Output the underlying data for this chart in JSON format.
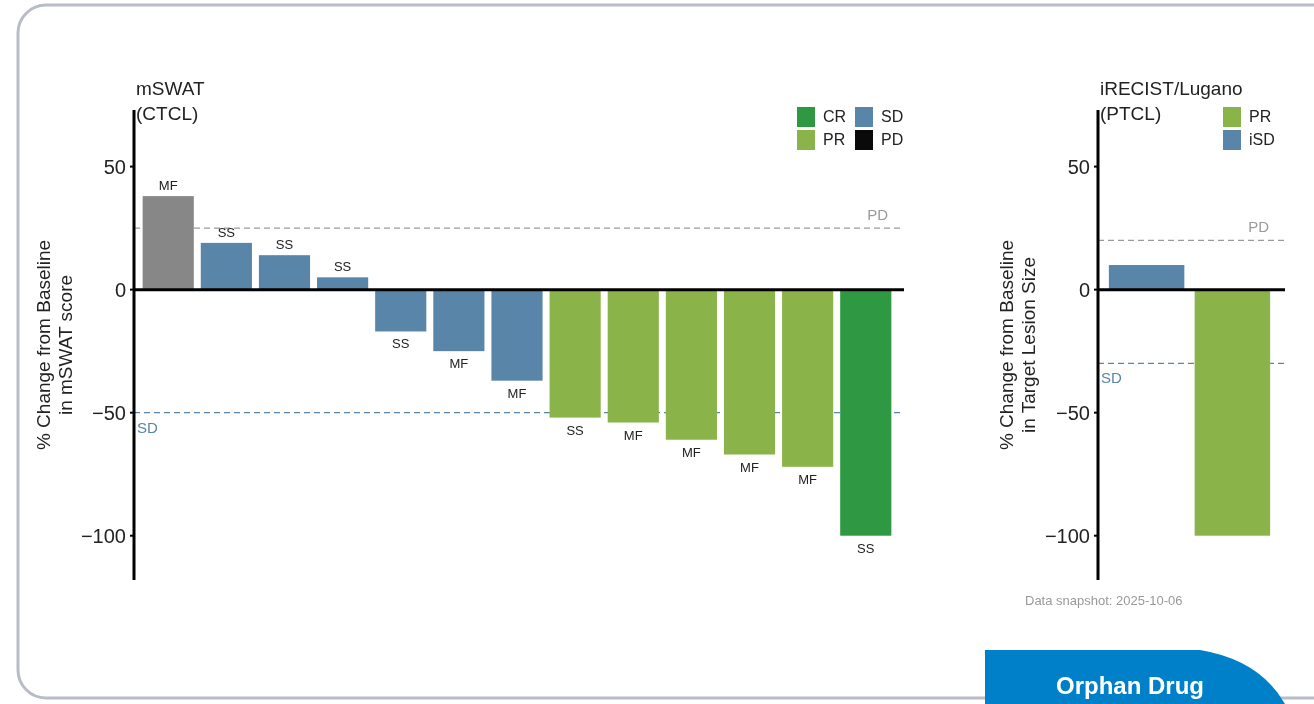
{
  "chart_data": [
    {
      "type": "bar",
      "title": "mSWAT\n(CTCL)",
      "ylabel": "% Change from Baseline\nin mSWAT score",
      "categories": [
        null,
        null,
        null,
        null,
        null,
        null,
        null,
        null,
        null,
        null,
        null,
        null,
        null
      ],
      "series": [
        {
          "name": "CR",
          "color": "#2e9843",
          "values": [
            null,
            null,
            null,
            null,
            null,
            null,
            null,
            null,
            null,
            null,
            null,
            null,
            -100
          ],
          "value_labels": [
            null,
            null,
            null,
            null,
            null,
            null,
            null,
            null,
            null,
            null,
            null,
            null,
            "SS"
          ]
        },
        {
          "name": "PR",
          "color": "#8ab44a",
          "values": [
            null,
            null,
            null,
            null,
            null,
            null,
            null,
            -52,
            -54,
            -61,
            -67,
            -72,
            null
          ],
          "value_labels": [
            null,
            null,
            null,
            null,
            null,
            null,
            null,
            "SS",
            "MF",
            "MF",
            "MF",
            "MF",
            null
          ]
        },
        {
          "name": "SD",
          "color": "#5885a8",
          "values": [
            null,
            19,
            14,
            5,
            -17,
            -25,
            -37,
            null,
            null,
            null,
            null,
            null,
            null
          ],
          "value_labels": [
            null,
            "SS",
            "SS",
            "SS",
            "SS",
            "MF",
            "MF",
            null,
            null,
            null,
            null,
            null,
            null
          ]
        },
        {
          "name": "PD",
          "color": "#0a0a0a",
          "values": [
            null,
            null,
            null,
            null,
            null,
            null,
            null,
            null,
            null,
            null,
            null,
            null,
            null
          ]
        },
        {
          "color": "#878787",
          "values": [
            38,
            null,
            null,
            null,
            null,
            null,
            null,
            null,
            null,
            null,
            null,
            null,
            null
          ],
          "value_labels": [
            "MF",
            null,
            null,
            null,
            null,
            null,
            null,
            null,
            null,
            null,
            null,
            null,
            null
          ]
        }
      ],
      "ylim": [
        -118,
        73
      ],
      "yticks": [
        -100,
        -50,
        50,
        0
      ],
      "ref_lines": [
        {
          "axis": "y",
          "value": 25,
          "label": "PD",
          "color": "#9a9a9a",
          "line_style": "dashed"
        },
        {
          "axis": "y",
          "value": -50,
          "label": "SD",
          "color": "#5885a8",
          "line_style": "dashed"
        }
      ],
      "legend": "top right",
      "tick_labels": "y"
    },
    {
      "type": "bar",
      "title": "iRECIST/Lugano\n(PTCL)",
      "ylabel": "% Change from Baseline\nin Target Lesion Size",
      "categories": [
        null,
        null
      ],
      "series": [
        {
          "name": "PR",
          "color": "#8ab44a",
          "values": [
            null,
            -100
          ]
        },
        {
          "name": "iSD",
          "color": "#5885a8",
          "values": [
            10,
            null
          ]
        }
      ],
      "ylim": [
        -118,
        73
      ],
      "yticks": [
        -100,
        -50,
        0,
        50
      ],
      "ref_lines": [
        {
          "axis": "y",
          "value": 20,
          "label": "PD",
          "color": "#9a9a9a",
          "line_style": "dashed"
        },
        {
          "axis": "y",
          "value": -30,
          "label": "SD",
          "color": "#5885a8",
          "line_style": "dashed"
        }
      ],
      "annotations": [
        "Data snapshot: 2025-10-06",
        "Orphan Drug"
      ],
      "legend": "top right",
      "tick_labels": "y"
    }
  ]
}
